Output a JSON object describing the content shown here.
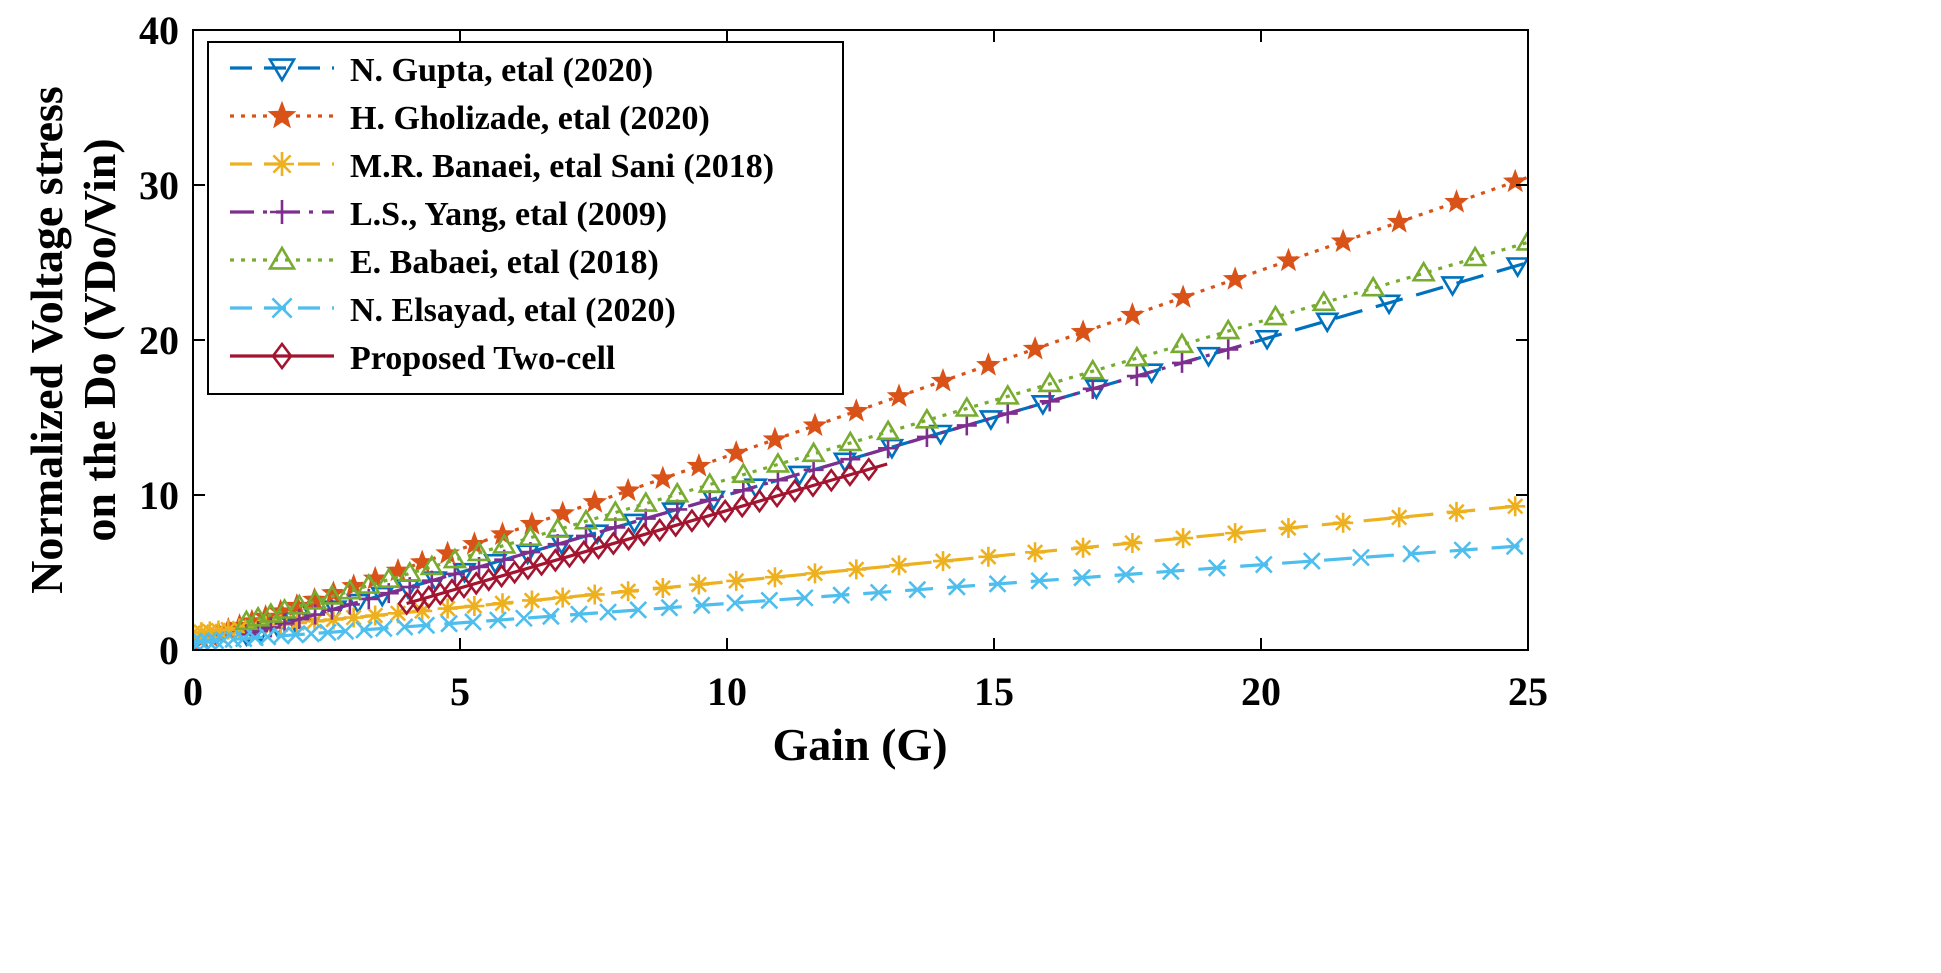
{
  "chart_data": {
    "type": "line",
    "title": "",
    "xlabel": "Gain (G)",
    "ylabel": [
      "Normalized Voltage stress",
      "on the Do (VDo/Vin)"
    ],
    "xlim": [
      0,
      25
    ],
    "ylim": [
      0,
      40
    ],
    "xticks": [
      0,
      5,
      10,
      15,
      20,
      25
    ],
    "yticks": [
      0,
      10,
      20,
      30,
      40
    ],
    "grid": false,
    "legend_position": "top-left",
    "series": [
      {
        "name": "N. Gupta, etal (2020)",
        "color": "#0072BD",
        "line": "dashed",
        "marker": "triangle-down",
        "x_start": 1,
        "x_end": 25,
        "marker_step": 0.5,
        "formula": "G",
        "endpoints": [
          [
            1,
            1
          ],
          [
            25,
            25
          ]
        ]
      },
      {
        "name": "H. Gholizade, etal (2020)",
        "color": "#D95319",
        "line": "dotted",
        "marker": "star",
        "x_start": 0,
        "x_end": 25,
        "marker_step": 0.45,
        "formula": "1.2*G + 0.5",
        "endpoints": [
          [
            0,
            0.5
          ],
          [
            25,
            30.5
          ]
        ]
      },
      {
        "name": "M.R. Banaei, etal Sani (2018)",
        "color": "#EDB120",
        "line": "dashed",
        "marker": "asterisk",
        "x_start": 0,
        "x_end": 25,
        "marker_step": 0.45,
        "formula": "0.33*G + 1.1",
        "endpoints": [
          [
            0,
            1.1
          ],
          [
            25,
            9.35
          ]
        ]
      },
      {
        "name": "L.S., Yang, etal (2009)",
        "color": "#7E2F8E",
        "line": "dashdot",
        "marker": "plus",
        "x_start": 1,
        "x_end": 20,
        "marker_step": 0.4,
        "formula": "G",
        "endpoints": [
          [
            1,
            1
          ],
          [
            20,
            20
          ]
        ]
      },
      {
        "name": "E. Babaei, etal (2018)",
        "color": "#77AC30",
        "line": "dotted",
        "marker": "triangle-up",
        "x_start": 1,
        "x_end": 25,
        "marker_step": 0.4,
        "formula": "1.02*G + 0.8",
        "endpoints": [
          [
            1,
            1.82
          ],
          [
            25,
            26.3
          ]
        ]
      },
      {
        "name": "N. Elsayad, etal (2020)",
        "color": "#4DBEEE",
        "line": "dashed",
        "marker": "x",
        "x_start": 0,
        "x_end": 25,
        "marker_step": 0.4,
        "formula": "0.25*G + 0.5",
        "endpoints": [
          [
            0,
            0.5
          ],
          [
            25,
            6.75
          ]
        ]
      },
      {
        "name": "Proposed Two-cell",
        "color": "#A2142F",
        "line": "solid",
        "marker": "diamond",
        "x_start": 4,
        "x_end": 13,
        "marker_step": 0.2,
        "formula": "G - 1",
        "endpoints": [
          [
            4,
            3
          ],
          [
            13,
            12
          ]
        ]
      }
    ]
  }
}
